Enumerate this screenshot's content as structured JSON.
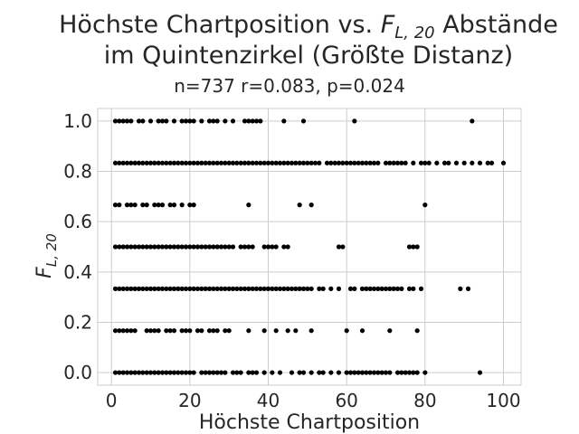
{
  "chart_data": {
    "type": "scatter",
    "title_line1_pre": "Höchste Chartposition vs. ",
    "title_math_main": "F",
    "title_math_sub": "L, 20",
    "title_line1_post": " Abstände",
    "title_line2": "im Quintenzirkel (Größte Distanz)",
    "subtitle": "n=737 r=0.083, p=0.024",
    "xlabel": "Höchste Chartposition",
    "ylabel_main": "F",
    "ylabel_sub": "L, 20",
    "xlim": [
      -3.5,
      104.5
    ],
    "ylim": [
      -0.05,
      1.05
    ],
    "xticks": [
      0,
      20,
      40,
      60,
      80,
      100
    ],
    "xtick_labels": [
      "0",
      "20",
      "40",
      "60",
      "80",
      "100"
    ],
    "yticks": [
      0.0,
      0.2,
      0.4,
      0.6,
      0.8,
      1.0
    ],
    "ytick_labels": [
      "0.0",
      "0.2",
      "0.4",
      "0.6",
      "0.8",
      "1.0"
    ],
    "grid": true,
    "marker_color": "#000000",
    "rows": [
      {
        "y": 1.0,
        "x": [
          1,
          2,
          3,
          4,
          5,
          7,
          8,
          10,
          12,
          13,
          14,
          16,
          18,
          19,
          20,
          21,
          23,
          25,
          26,
          27,
          29,
          31,
          34,
          35,
          36,
          37,
          38,
          44,
          49,
          62,
          92
        ]
      },
      {
        "y": 0.8333,
        "x": [
          1,
          2,
          3,
          4,
          5,
          6,
          7,
          8,
          9,
          10,
          11,
          12,
          13,
          14,
          15,
          16,
          17,
          18,
          19,
          20,
          21,
          22,
          23,
          24,
          25,
          26,
          27,
          28,
          29,
          30,
          31,
          32,
          33,
          34,
          35,
          36,
          37,
          38,
          39,
          40,
          41,
          42,
          43,
          44,
          45,
          46,
          47,
          48,
          49,
          50,
          51,
          52,
          53,
          55,
          56,
          57,
          58,
          59,
          60,
          61,
          62,
          63,
          64,
          65,
          66,
          67,
          68,
          70,
          71,
          72,
          73,
          74,
          75,
          77,
          79,
          80,
          81,
          83,
          85,
          86,
          88,
          90,
          92,
          94,
          96,
          97,
          100
        ]
      },
      {
        "y": 0.6667,
        "x": [
          1,
          2,
          4,
          5,
          6,
          8,
          9,
          11,
          12,
          13,
          15,
          16,
          18,
          20,
          21,
          35,
          48,
          51,
          80
        ]
      },
      {
        "y": 0.5,
        "x": [
          1,
          2,
          3,
          4,
          5,
          6,
          7,
          8,
          9,
          10,
          11,
          12,
          13,
          14,
          15,
          16,
          17,
          18,
          19,
          20,
          21,
          22,
          23,
          24,
          25,
          26,
          27,
          28,
          29,
          30,
          31,
          33,
          34,
          35,
          36,
          39,
          40,
          41,
          42,
          44,
          45,
          58,
          59,
          76,
          77,
          78
        ]
      },
      {
        "y": 0.3333,
        "x": [
          1,
          2,
          3,
          4,
          5,
          6,
          7,
          8,
          9,
          10,
          11,
          12,
          13,
          14,
          15,
          16,
          17,
          18,
          19,
          20,
          21,
          22,
          23,
          24,
          25,
          26,
          27,
          28,
          29,
          30,
          31,
          32,
          33,
          34,
          35,
          36,
          37,
          38,
          39,
          40,
          41,
          42,
          43,
          44,
          45,
          46,
          47,
          48,
          49,
          50,
          51,
          53,
          54,
          56,
          58,
          61,
          62,
          64,
          65,
          66,
          67,
          68,
          69,
          70,
          71,
          72,
          73,
          74,
          76,
          77,
          79,
          89,
          91
        ]
      },
      {
        "y": 0.1667,
        "x": [
          1,
          2,
          3,
          4,
          5,
          6,
          9,
          10,
          11,
          12,
          14,
          15,
          16,
          18,
          19,
          20,
          22,
          23,
          25,
          26,
          27,
          29,
          30,
          35,
          39,
          42,
          45,
          47,
          51,
          60,
          64,
          71,
          78
        ]
      },
      {
        "y": 0.0,
        "x": [
          1,
          2,
          3,
          4,
          5,
          6,
          7,
          8,
          9,
          10,
          11,
          12,
          13,
          14,
          15,
          16,
          17,
          18,
          19,
          20,
          21,
          23,
          24,
          25,
          26,
          27,
          28,
          29,
          31,
          32,
          33,
          35,
          36,
          37,
          39,
          41,
          43,
          46,
          48,
          49,
          51,
          53,
          54,
          56,
          58,
          60,
          61,
          62,
          63,
          64,
          65,
          66,
          67,
          68,
          69,
          70,
          71,
          73,
          74,
          75,
          76,
          77,
          78,
          80,
          94
        ]
      }
    ]
  }
}
